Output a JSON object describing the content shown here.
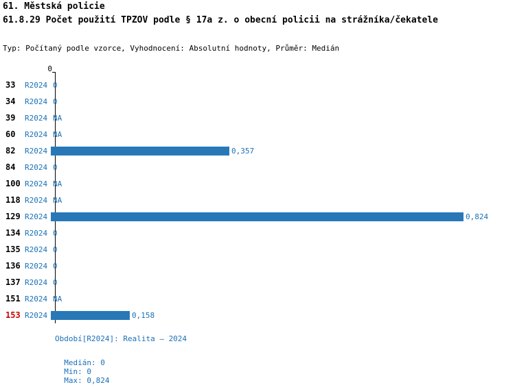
{
  "title": {
    "line1": "61. Městská policie",
    "line2": "61.8.29 Počet použití TPZOV podle § 17a z. o obecní policii na strážníka/čekatele",
    "meta": "Typ: Počítaný podle vzorce, Vyhodnocení: Absolutní hodnoty, Průměr: Medián"
  },
  "chart_data": {
    "type": "bar",
    "orientation": "horizontal",
    "title": "61.8.29 Počet použití TPZOV podle § 17a z. o obecní policii na strážníka/čekatele",
    "series_name": "R2024",
    "axis_zero_label": "0",
    "xlim": [
      0,
      0.9
    ],
    "grid": false,
    "bar_color": "#2878b8",
    "highlight_color": "#cc0000",
    "text_color": "#1a70b8",
    "rows": [
      {
        "id": "33",
        "period": "R2024",
        "value": 0,
        "display": "0",
        "highlight": false
      },
      {
        "id": "34",
        "period": "R2024",
        "value": 0,
        "display": "0",
        "highlight": false
      },
      {
        "id": "39",
        "period": "R2024",
        "value": null,
        "display": "NA",
        "highlight": false
      },
      {
        "id": "60",
        "period": "R2024",
        "value": null,
        "display": "NA",
        "highlight": false
      },
      {
        "id": "82",
        "period": "R2024",
        "value": 0.357,
        "display": "0,357",
        "highlight": false
      },
      {
        "id": "84",
        "period": "R2024",
        "value": 0,
        "display": "0",
        "highlight": false
      },
      {
        "id": "100",
        "period": "R2024",
        "value": null,
        "display": "NA",
        "highlight": false
      },
      {
        "id": "118",
        "period": "R2024",
        "value": null,
        "display": "NA",
        "highlight": false
      },
      {
        "id": "129",
        "period": "R2024",
        "value": 0.824,
        "display": "0,824",
        "highlight": false
      },
      {
        "id": "134",
        "period": "R2024",
        "value": 0,
        "display": "0",
        "highlight": false
      },
      {
        "id": "135",
        "period": "R2024",
        "value": 0,
        "display": "0",
        "highlight": false
      },
      {
        "id": "136",
        "period": "R2024",
        "value": 0,
        "display": "0",
        "highlight": false
      },
      {
        "id": "137",
        "period": "R2024",
        "value": 0,
        "display": "0",
        "highlight": false
      },
      {
        "id": "151",
        "period": "R2024",
        "value": null,
        "display": "NA",
        "highlight": false
      },
      {
        "id": "153",
        "period": "R2024",
        "value": 0.158,
        "display": "0,158",
        "highlight": true
      }
    ],
    "median": 0,
    "min": 0,
    "max": 0.824
  },
  "footer": {
    "period_info": "Období[R2024]: Realita – 2024",
    "median": "Medián: 0",
    "min": "Min: 0",
    "max": "Max: 0,824"
  }
}
